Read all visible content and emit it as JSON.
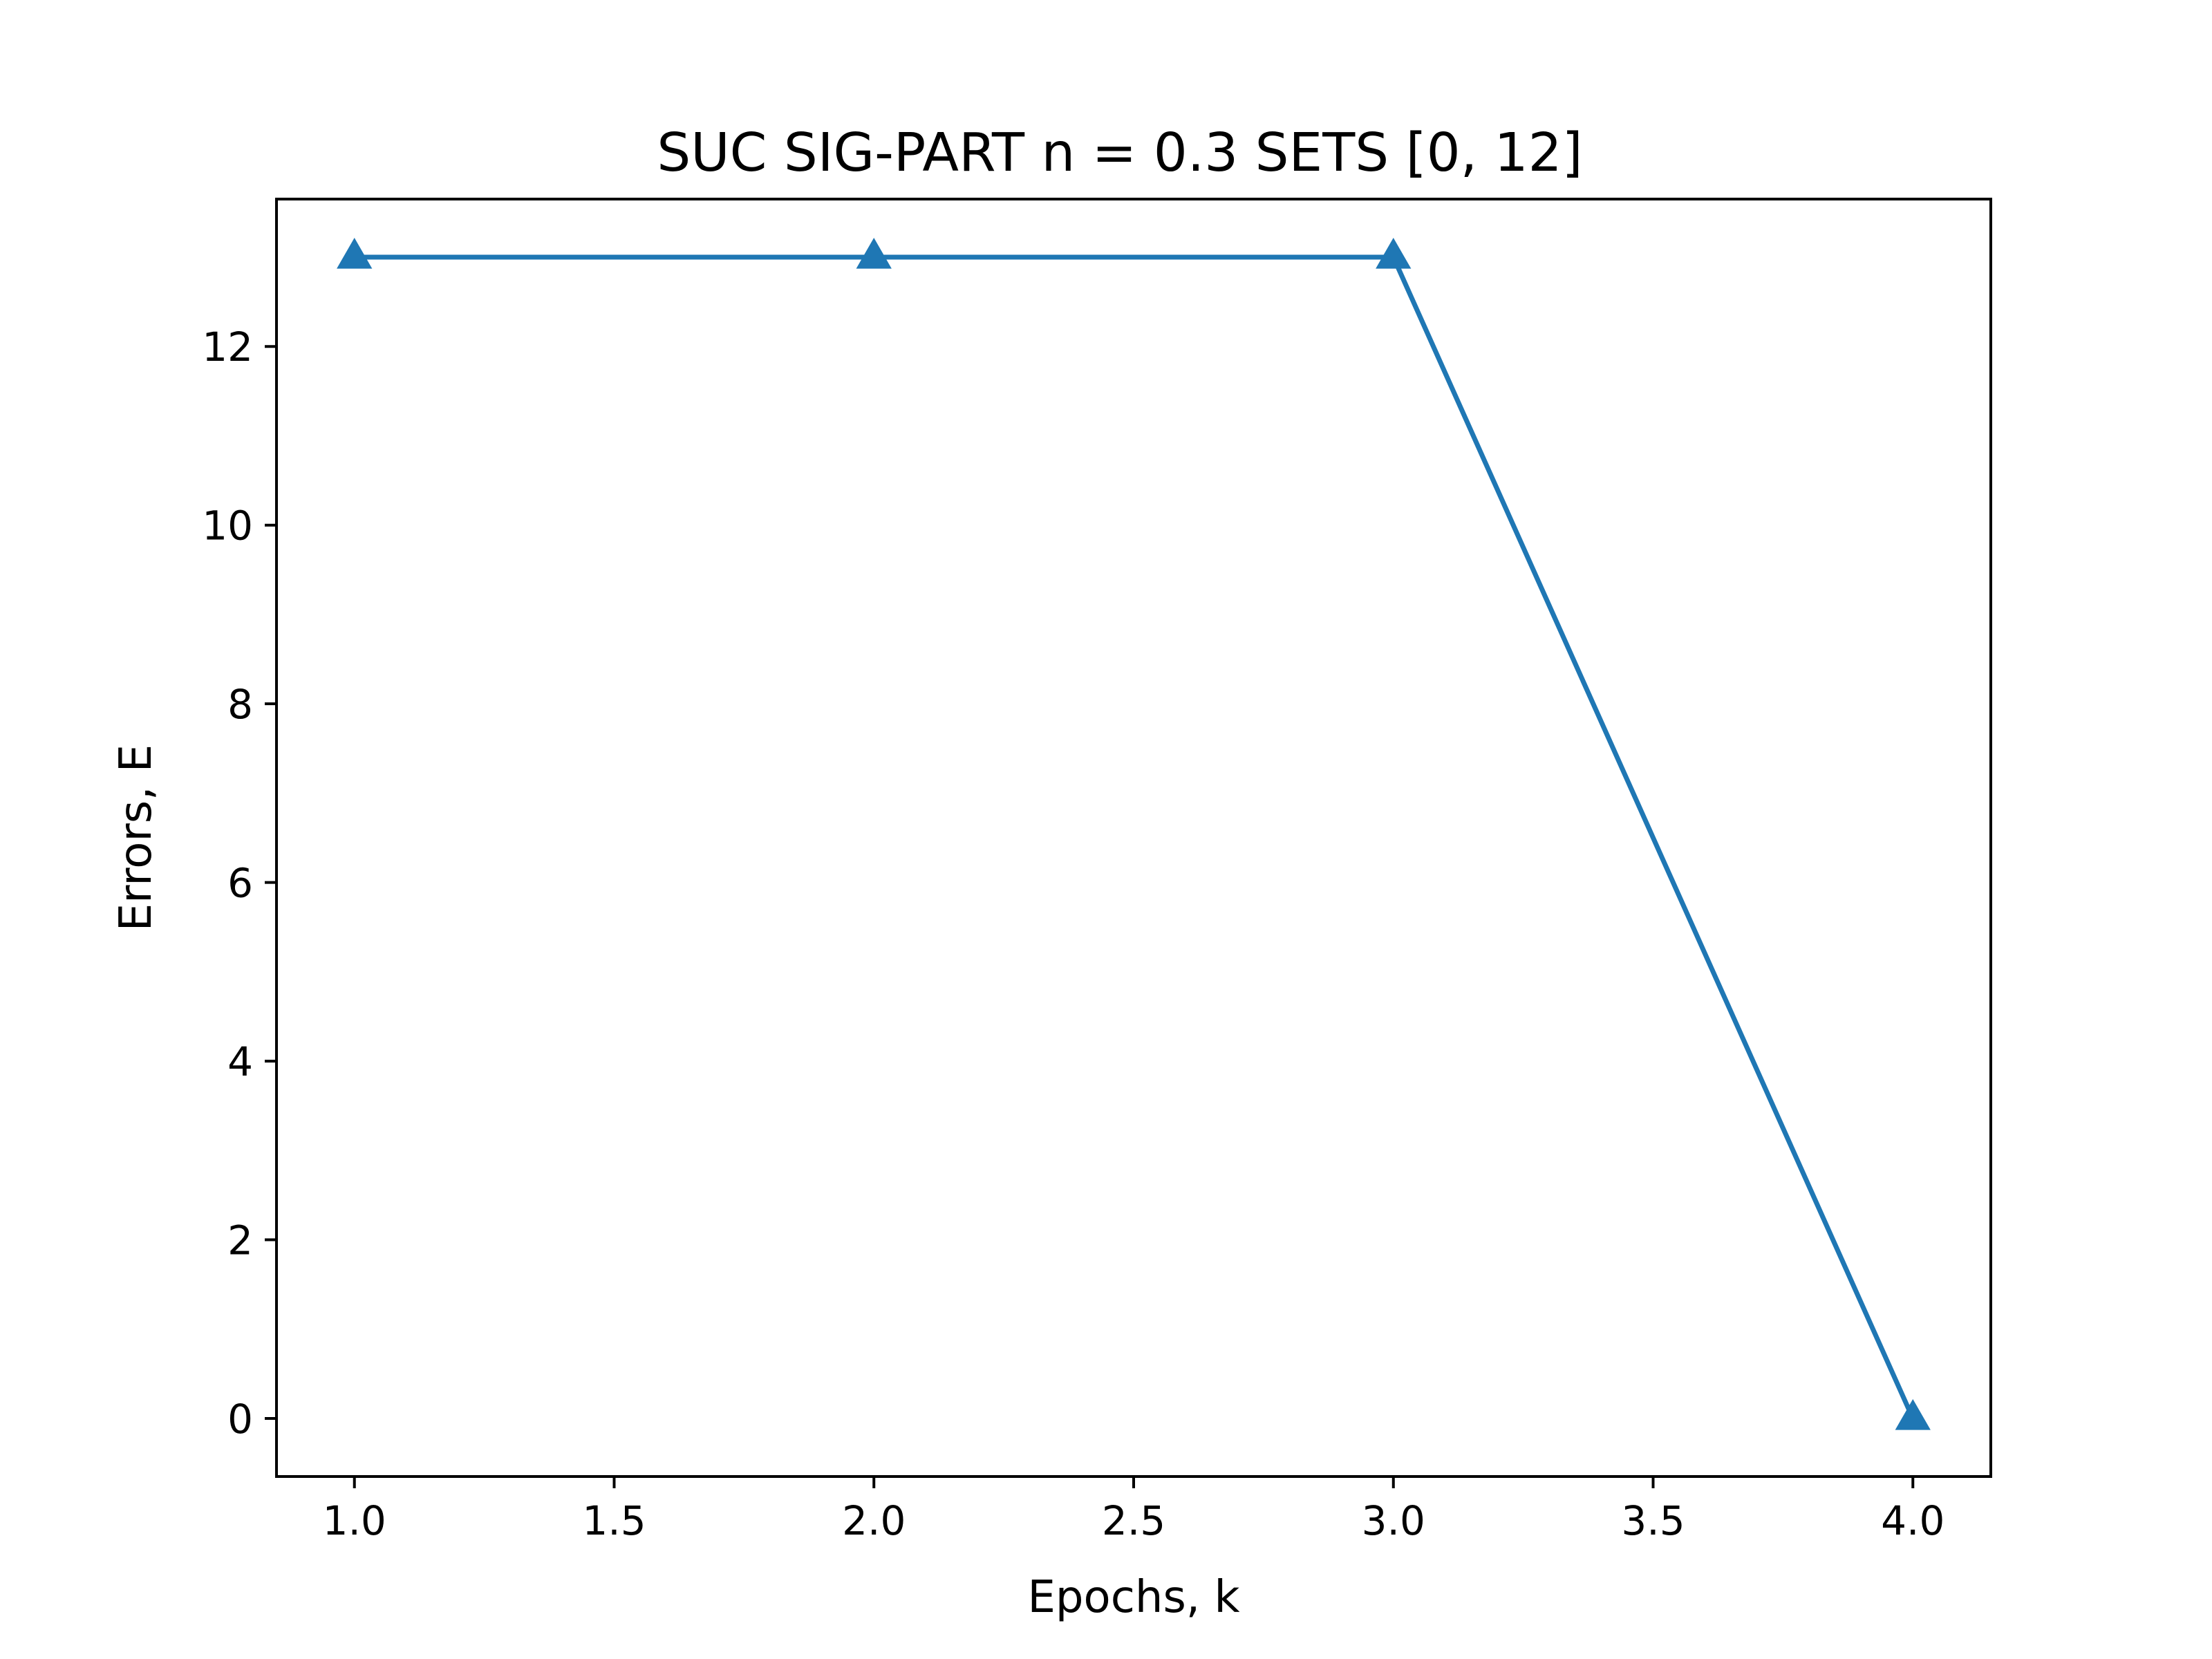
{
  "chart_data": {
    "type": "line",
    "title": "SUC SIG-PART n = 0.3 SETS [0, 12]",
    "xlabel": "Epochs, k",
    "ylabel": "Errors, E",
    "xlim": [
      0.85,
      4.15
    ],
    "ylim": [
      -0.65,
      13.65
    ],
    "xticks": [
      1.0,
      1.5,
      2.0,
      2.5,
      3.0,
      3.5,
      4.0
    ],
    "xtick_labels": [
      "1.0",
      "1.5",
      "2.0",
      "2.5",
      "3.0",
      "3.5",
      "4.0"
    ],
    "yticks": [
      0,
      2,
      4,
      6,
      8,
      10,
      12
    ],
    "ytick_labels": [
      "0",
      "2",
      "4",
      "6",
      "8",
      "10",
      "12"
    ],
    "grid": false,
    "legend": "none",
    "series": [
      {
        "marker": "triangle-up",
        "color": "#1f77b4",
        "x": [
          1,
          2,
          3,
          4
        ],
        "y": [
          13,
          13,
          13,
          0
        ]
      }
    ]
  }
}
